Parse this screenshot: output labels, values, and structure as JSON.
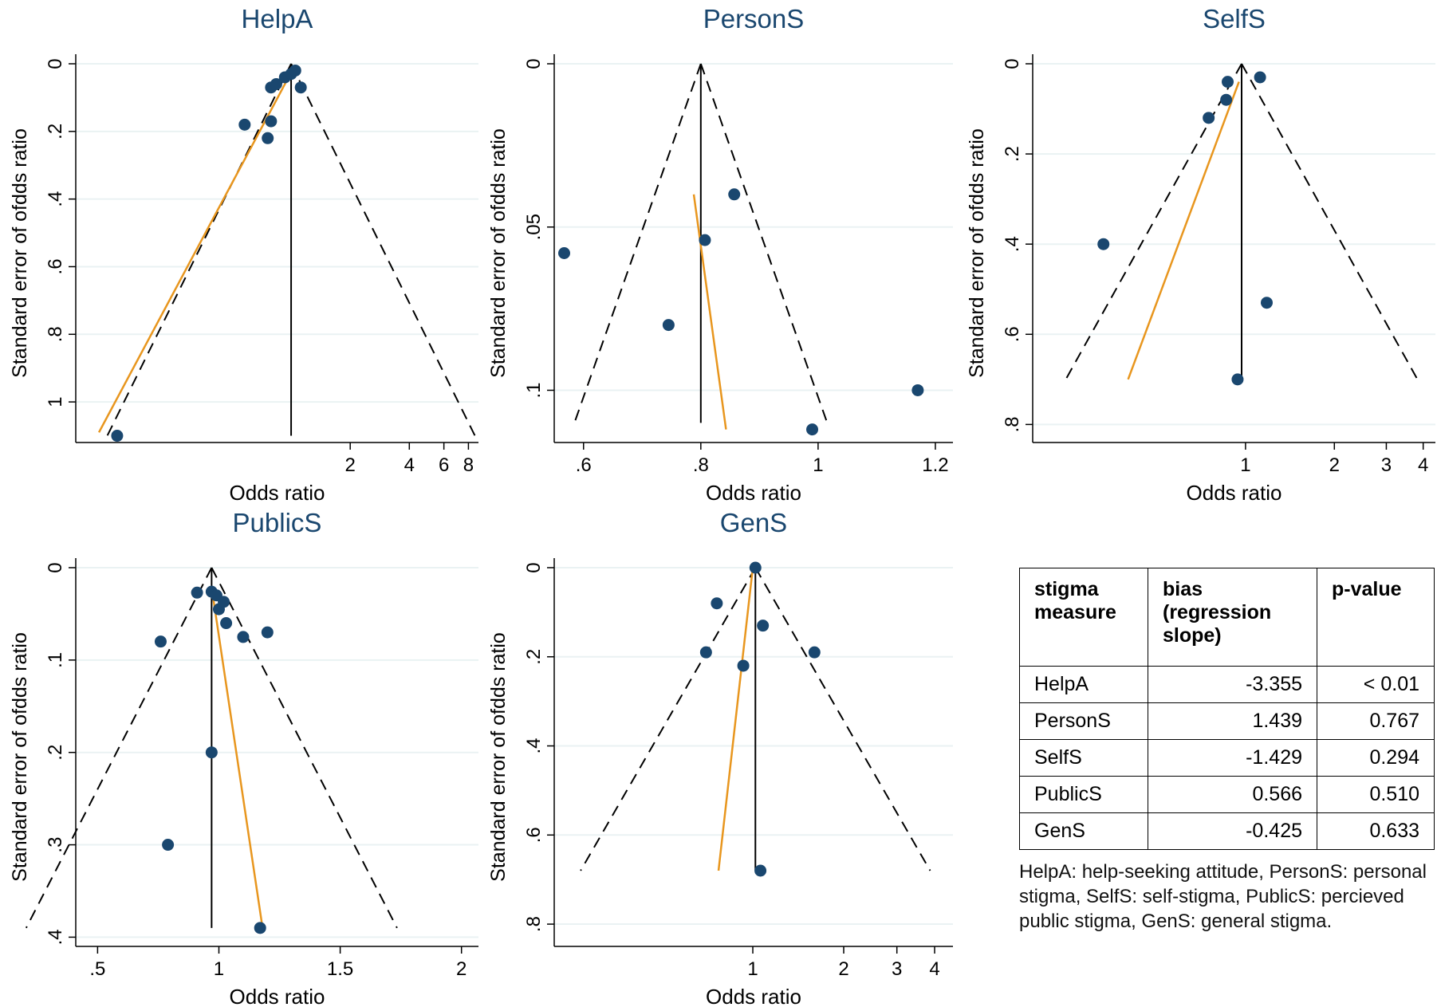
{
  "chart_data": [
    {
      "type": "scatter",
      "title": "HelpA",
      "xlabel": "Odds ratio",
      "ylabel": "Standard error of ofdds ratio",
      "x_scale": "log",
      "xlim": [
        0.08,
        9
      ],
      "x_ticks": [
        {
          "value": 2,
          "label": "2"
        },
        {
          "value": 4,
          "label": "4"
        },
        {
          "value": 6,
          "label": "6"
        },
        {
          "value": 8,
          "label": "8"
        }
      ],
      "ylim": [
        0,
        1.12
      ],
      "y_inverted": true,
      "y_ticks": [
        {
          "value": 0,
          "label": "0"
        },
        {
          "value": 0.2,
          "label": ".2"
        },
        {
          "value": 0.4,
          "label": ".4"
        },
        {
          "value": 0.6,
          "label": ".6"
        },
        {
          "value": 0.8,
          "label": ".8"
        },
        {
          "value": 1,
          "label": "1"
        }
      ],
      "grid": true,
      "pooled": 1.0,
      "funnel_se_max": 1.1,
      "points": [
        {
          "x": 0.13,
          "y": 1.1
        },
        {
          "x": 0.58,
          "y": 0.18
        },
        {
          "x": 0.76,
          "y": 0.22
        },
        {
          "x": 0.79,
          "y": 0.17
        },
        {
          "x": 0.79,
          "y": 0.07
        },
        {
          "x": 0.84,
          "y": 0.06
        },
        {
          "x": 0.93,
          "y": 0.04
        },
        {
          "x": 1.0,
          "y": 0.03
        },
        {
          "x": 1.05,
          "y": 0.02
        },
        {
          "x": 1.12,
          "y": 0.07
        }
      ],
      "regression_line": [
        {
          "x": 0.105,
          "y": 1.09
        },
        {
          "x": 0.97,
          "y": 0.04
        }
      ]
    },
    {
      "type": "scatter",
      "title": "PersonS",
      "xlabel": "Odds ratio",
      "ylabel": "Standard error of ofdds ratio",
      "x_scale": "linear",
      "xlim": [
        0.55,
        1.23
      ],
      "x_ticks": [
        {
          "value": 0.6,
          "label": ".6"
        },
        {
          "value": 0.8,
          "label": ".8"
        },
        {
          "value": 1,
          "label": "1"
        },
        {
          "value": 1.2,
          "label": "1.2"
        }
      ],
      "ylim": [
        0,
        0.116
      ],
      "y_inverted": true,
      "y_ticks": [
        {
          "value": 0,
          "label": "0"
        },
        {
          "value": 0.05,
          "label": ".05"
        },
        {
          "value": 0.1,
          "label": ".1"
        }
      ],
      "grid": true,
      "pooled": 0.8,
      "funnel_se_max": 0.11,
      "points": [
        {
          "x": 0.567,
          "y": 0.058
        },
        {
          "x": 0.745,
          "y": 0.08
        },
        {
          "x": 0.807,
          "y": 0.054
        },
        {
          "x": 0.857,
          "y": 0.04
        },
        {
          "x": 0.99,
          "y": 0.112
        },
        {
          "x": 1.17,
          "y": 0.1
        }
      ],
      "regression_line": [
        {
          "x": 0.788,
          "y": 0.04
        },
        {
          "x": 0.843,
          "y": 0.112
        }
      ]
    },
    {
      "type": "scatter",
      "title": "SelfS",
      "xlabel": "Odds ratio",
      "ylabel": "Standard error of ofdds ratio",
      "x_scale": "log",
      "xlim": [
        0.19,
        4.4
      ],
      "x_ticks": [
        {
          "value": 1,
          "label": "1"
        },
        {
          "value": 2,
          "label": "2"
        },
        {
          "value": 3,
          "label": "3"
        },
        {
          "value": 4,
          "label": "4"
        }
      ],
      "ylim": [
        0,
        0.84
      ],
      "y_inverted": true,
      "y_ticks": [
        {
          "value": 0,
          "label": "0"
        },
        {
          "value": 0.2,
          "label": ".2"
        },
        {
          "value": 0.4,
          "label": ".4"
        },
        {
          "value": 0.6,
          "label": ".6"
        },
        {
          "value": 0.8,
          "label": ".8"
        }
      ],
      "grid": true,
      "pooled": 0.97,
      "funnel_se_max": 0.7,
      "points": [
        {
          "x": 0.75,
          "y": 0.12
        },
        {
          "x": 0.86,
          "y": 0.08
        },
        {
          "x": 0.87,
          "y": 0.04
        },
        {
          "x": 1.12,
          "y": 0.03
        },
        {
          "x": 0.33,
          "y": 0.4
        },
        {
          "x": 1.18,
          "y": 0.53
        },
        {
          "x": 0.94,
          "y": 0.7
        }
      ],
      "regression_line": [
        {
          "x": 0.4,
          "y": 0.7
        },
        {
          "x": 0.95,
          "y": 0.04
        }
      ]
    },
    {
      "type": "scatter",
      "title": "PublicS",
      "xlabel": "Odds ratio",
      "ylabel": "Standard error of ofdds ratio",
      "x_scale": "linear",
      "xlim": [
        0.41,
        2.07
      ],
      "x_ticks": [
        {
          "value": 0.5,
          "label": ".5"
        },
        {
          "value": 1,
          "label": "1"
        },
        {
          "value": 1.5,
          "label": "1.5"
        },
        {
          "value": 2,
          "label": "2"
        }
      ],
      "ylim": [
        0,
        0.41
      ],
      "y_inverted": true,
      "y_ticks": [
        {
          "value": 0,
          "label": "0"
        },
        {
          "value": 0.1,
          "label": ".1"
        },
        {
          "value": 0.2,
          "label": ".2"
        },
        {
          "value": 0.3,
          "label": ".3"
        },
        {
          "value": 0.4,
          "label": ".4"
        }
      ],
      "grid": true,
      "pooled": 0.97,
      "funnel_se_max": 0.39,
      "points": [
        {
          "x": 0.76,
          "y": 0.08
        },
        {
          "x": 0.91,
          "y": 0.027
        },
        {
          "x": 0.97,
          "y": 0.026
        },
        {
          "x": 0.99,
          "y": 0.03
        },
        {
          "x": 1.0,
          "y": 0.045
        },
        {
          "x": 1.02,
          "y": 0.037
        },
        {
          "x": 1.03,
          "y": 0.06
        },
        {
          "x": 1.1,
          "y": 0.075
        },
        {
          "x": 1.2,
          "y": 0.07
        },
        {
          "x": 0.97,
          "y": 0.2
        },
        {
          "x": 0.79,
          "y": 0.3
        },
        {
          "x": 1.17,
          "y": 0.39
        }
      ],
      "regression_line": [
        {
          "x": 0.975,
          "y": 0.03
        },
        {
          "x": 1.18,
          "y": 0.39
        }
      ]
    },
    {
      "type": "scatter",
      "title": "GenS",
      "xlabel": "Odds ratio",
      "ylabel": "Standard error of ofdds ratio",
      "x_scale": "log",
      "xlim": [
        0.22,
        4.6
      ],
      "x_ticks": [
        {
          "value": 1,
          "label": "1"
        },
        {
          "value": 2,
          "label": "2"
        },
        {
          "value": 3,
          "label": "3"
        },
        {
          "value": 4,
          "label": "4"
        }
      ],
      "ylim": [
        0,
        0.85
      ],
      "y_inverted": true,
      "y_ticks": [
        {
          "value": 0,
          "label": "0"
        },
        {
          "value": 0.2,
          "label": ".2"
        },
        {
          "value": 0.4,
          "label": ".4"
        },
        {
          "value": 0.6,
          "label": ".6"
        },
        {
          "value": 0.8,
          "label": ".8"
        }
      ],
      "grid": true,
      "pooled": 1.02,
      "funnel_se_max": 0.68,
      "points": [
        {
          "x": 1.02,
          "y": 0.0
        },
        {
          "x": 0.76,
          "y": 0.08
        },
        {
          "x": 1.08,
          "y": 0.13
        },
        {
          "x": 0.7,
          "y": 0.19
        },
        {
          "x": 0.93,
          "y": 0.22
        },
        {
          "x": 1.6,
          "y": 0.19
        },
        {
          "x": 1.06,
          "y": 0.68
        }
      ],
      "regression_line": [
        {
          "x": 0.77,
          "y": 0.68
        },
        {
          "x": 1.0,
          "y": 0.0
        }
      ]
    }
  ],
  "colors": {
    "point": "#1a476f",
    "regression": "#e8961e",
    "axis": "#000000",
    "grid": "#eaf2f3",
    "title": "#1a476f"
  },
  "summary_table": {
    "headers": [
      "stigma measure",
      "bias (regression slope)",
      "p-value"
    ],
    "rows": [
      {
        "measure": "HelpA",
        "bias": "-3.355",
        "p": "< 0.01"
      },
      {
        "measure": "PersonS",
        "bias": "1.439",
        "p": "0.767"
      },
      {
        "measure": "SelfS",
        "bias": "-1.429",
        "p": "0.294"
      },
      {
        "measure": "PublicS",
        "bias": "0.566",
        "p": "0.510"
      },
      {
        "measure": "GenS",
        "bias": "-0.425",
        "p": "0.633"
      }
    ]
  },
  "footnote": "HelpA: help-seeking attitude, PersonS: personal stigma, SelfS: self-stigma, PublicS: percieved public stigma, GenS: general stigma."
}
